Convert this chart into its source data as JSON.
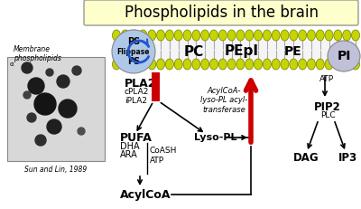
{
  "title": "Phospholipids in the brain",
  "title_bg": "#ffffcc",
  "bg_color": "#ffffff",
  "membrane_labels": [
    "PC",
    "PEpI",
    "PE"
  ],
  "pi_label": "PI",
  "pip2_label": "PIP2",
  "pla2_label": "PLA2",
  "cpla2_label": "cPLA2",
  "ipla2_label": "iPLA2",
  "pufa_label": "PUFA",
  "dha_label": "DHA",
  "ara_label": "ARA",
  "acylcoa_label": "AcylCoA",
  "lysoPL_label": "Lyso-PL",
  "acyltransferase_label": "AcylCoA-\nlyso-PL acyl-\ntransferase",
  "dag_label": "DAG",
  "ip3_label": "IP3",
  "plc_label": "PLC",
  "atp_label": "ATP",
  "coash_label": "CoASH\nATP",
  "membrane_color": "#c8d400",
  "membrane_edge": "#6a8000",
  "membrane_tail": "#cccccc",
  "arrow_red": "#cc0000",
  "flippase_circle_color": "#b0c8e8",
  "pi_circle_color": "#c0c0d8",
  "image_label": "Membrane\nphospholipids",
  "credit": "Sun and Lin, 1989"
}
